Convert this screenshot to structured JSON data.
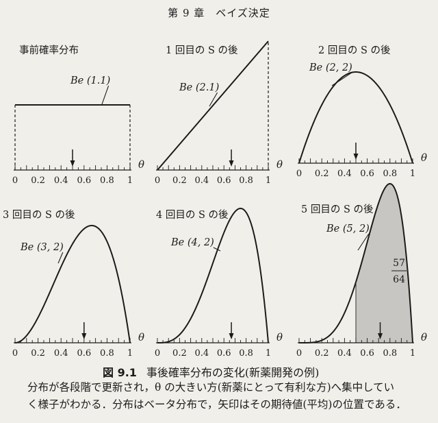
{
  "header": {
    "title": "第 9 章　ベイズ決定"
  },
  "figure": {
    "caption_number": "図 9.1",
    "caption_text": "事後確率分布の変化(新薬開発の例)",
    "x_axis_label": "θ",
    "tick_labels": [
      "0",
      "0.2",
      "0.4",
      "0.6",
      "0.8",
      "1"
    ]
  },
  "body_text": [
    "分布が各段階で更新され，θ の大きい方(新薬にとって有利な方)へ集中してい",
    "く様子がわかる．分布はベータ分布で，矢印はその期待値(平均)の位置である．"
  ],
  "chart_data": [
    {
      "type": "line",
      "title": "事前確率分布",
      "distribution": "Be (1.1)",
      "alpha": 1,
      "beta": 1,
      "mean": 0.5,
      "xlim": [
        0,
        1
      ]
    },
    {
      "type": "line",
      "title": "1 回目の S の後",
      "distribution": "Be (2.1)",
      "alpha": 2,
      "beta": 1,
      "mean": 0.667,
      "xlim": [
        0,
        1
      ]
    },
    {
      "type": "line",
      "title": "2 回目の S の後",
      "distribution": "Be (2, 2)",
      "alpha": 2,
      "beta": 2,
      "mean": 0.5,
      "xlim": [
        0,
        1
      ]
    },
    {
      "type": "line",
      "title": "3 回目の S の後",
      "distribution": "Be (3, 2)",
      "alpha": 3,
      "beta": 2,
      "mean": 0.6,
      "xlim": [
        0,
        1
      ]
    },
    {
      "type": "line",
      "title": "4 回目の S の後",
      "distribution": "Be (4, 2)",
      "alpha": 4,
      "beta": 2,
      "mean": 0.667,
      "xlim": [
        0,
        1
      ]
    },
    {
      "type": "area",
      "title": "5 回目の S の後",
      "distribution": "Be (5, 2)",
      "alpha": 5,
      "beta": 2,
      "mean": 0.714,
      "shaded_from": 0.5,
      "shaded_area_numerator": "57",
      "shaded_area_denominator": "64",
      "xlim": [
        0,
        1
      ]
    }
  ]
}
